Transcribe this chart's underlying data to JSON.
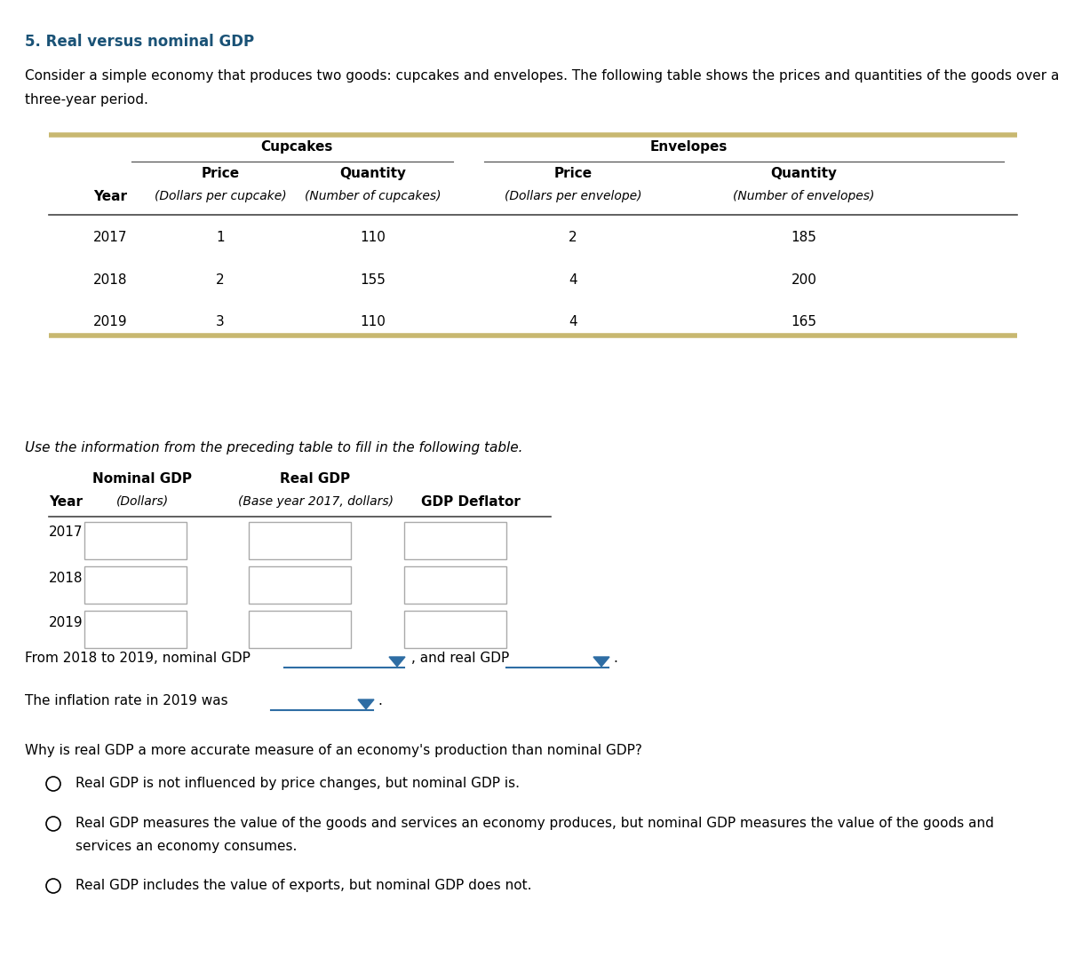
{
  "title": "5. Real versus nominal GDP",
  "title_color": "#1a5276",
  "intro_line1": "Consider a simple economy that produces two goods: cupcakes and envelopes. The following table shows the prices and quantities of the goods over a",
  "intro_line2": "three-year period.",
  "table1_data": [
    [
      "2017",
      "1",
      "110",
      "2",
      "185"
    ],
    [
      "2018",
      "2",
      "155",
      "4",
      "200"
    ],
    [
      "2019",
      "3",
      "110",
      "4",
      "165"
    ]
  ],
  "table_border_color": "#c8b870",
  "separator_color": "#444444",
  "mid_text": "Use the information from the preceding table to fill in the following table.",
  "table2_years": [
    "2017",
    "2018",
    "2019"
  ],
  "dropdown_text1": "From 2018 to 2019, nominal GDP",
  "dropdown_text2": ", and real GDP",
  "dropdown_text3": ".",
  "inflation_text": "The inflation rate in 2019 was",
  "inflation_end": ".",
  "question_text": "Why is real GDP a more accurate measure of an economy's production than nominal GDP?",
  "options": [
    "Real GDP is not influenced by price changes, but nominal GDP is.",
    "Real GDP measures the value of the goods and services an economy produces, but nominal GDP measures the value of the goods and",
    "services an economy consumes.",
    "Real GDP includes the value of exports, but nominal GDP does not."
  ],
  "bg_color": "#ffffff",
  "text_color": "#000000",
  "dropdown_line_color": "#2e6da4",
  "dropdown_arrow_color": "#2e6da4",
  "box_edge_color": "#aaaaaa"
}
